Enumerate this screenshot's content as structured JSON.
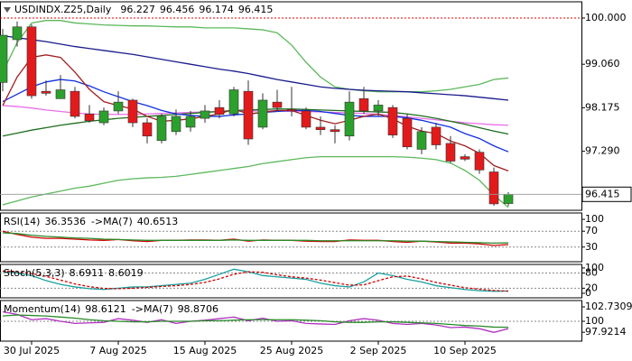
{
  "chart_data": [
    {
      "type": "candlestick",
      "title": "USDINDX.Z25,Daily",
      "categories": [
        null,
        null,
        "30 Jul 2025",
        null,
        null,
        null,
        null,
        null,
        "7 Aug 2025",
        null,
        null,
        null,
        null,
        null,
        "15 Aug 2025",
        null,
        null,
        null,
        null,
        null,
        "25 Aug 2025",
        null,
        null,
        null,
        null,
        null,
        "2 Sep 2025",
        null,
        null,
        null,
        null,
        null,
        "10 Sep 2025",
        null,
        null,
        null
      ],
      "ylim": [
        96.09,
        100.33
      ],
      "yticks": [
        {
          "value": 100,
          "label": "100.000"
        },
        {
          "value": 99.06,
          "label": "99.060"
        },
        98.175,
        {
          "value": 97.29,
          "label": "97.290"
        }
      ],
      "up_color": "#2ca02c",
      "down_color": "#e31a1c",
      "open": [
        98.69,
        99.56,
        99.82,
        98.51,
        98.36,
        98.51,
        98.05,
        97.87,
        98.11,
        98.33,
        97.87,
        97.51,
        97.69,
        97.78,
        97.96,
        98.18,
        98.05,
        98.51,
        97.78,
        98.29,
        98.14,
        98.11,
        97.78,
        97.73,
        97.6,
        98.36,
        98.11,
        98.18,
        97.96,
        97.33,
        97.78,
        97.45,
        97.18,
        97.27,
        96.87,
        96.227
      ],
      "high": [
        99.78,
        99.93,
        99.87,
        98.73,
        98.84,
        98.6,
        98.23,
        98.18,
        98.51,
        98.36,
        97.96,
        98.05,
        98.14,
        98.11,
        98.23,
        98.33,
        98.6,
        98.73,
        98.47,
        98.54,
        98.6,
        98.18,
        98.0,
        97.82,
        98.51,
        98.6,
        98.33,
        98.23,
        98.05,
        97.78,
        97.87,
        97.6,
        97.23,
        97.33,
        96.96,
        96.456
      ],
      "low": [
        98.51,
        99.42,
        98.36,
        98.42,
        98.36,
        97.96,
        97.87,
        97.82,
        98.05,
        97.78,
        97.45,
        97.45,
        97.62,
        97.69,
        97.87,
        97.96,
        98.0,
        97.42,
        97.74,
        98.11,
        98.0,
        97.74,
        97.62,
        97.45,
        97.51,
        98.05,
        98.0,
        97.56,
        97.33,
        97.23,
        97.33,
        97.05,
        97.09,
        96.83,
        96.18,
        96.174
      ],
      "close": [
        99.65,
        99.82,
        98.42,
        98.47,
        98.54,
        98.0,
        97.91,
        98.11,
        98.29,
        97.87,
        97.6,
        98.0,
        98.0,
        98.0,
        98.11,
        98.04,
        98.54,
        97.54,
        98.33,
        98.18,
        98.11,
        97.78,
        97.73,
        97.69,
        98.29,
        98.11,
        98.23,
        97.62,
        97.38,
        97.69,
        97.42,
        97.09,
        97.13,
        96.91,
        96.22,
        96.415
      ],
      "overlays": [
        {
          "color": "#5cb85c",
          "values": [
            98.9,
            99.5,
            99.9,
            99.95,
            99.95,
            99.9,
            99.88,
            99.86,
            99.85,
            99.84,
            99.84,
            99.83,
            99.82,
            99.82,
            99.8,
            99.8,
            99.8,
            99.78,
            99.76,
            99.7,
            99.45,
            99.1,
            98.8,
            98.6,
            98.55,
            98.52,
            98.5,
            98.5,
            98.5,
            98.5,
            98.52,
            98.55,
            98.6,
            98.65,
            98.75,
            98.78
          ]
        },
        {
          "color": "#5cb85c",
          "values": [
            96.2,
            96.28,
            96.36,
            96.42,
            96.48,
            96.54,
            96.58,
            96.64,
            96.7,
            96.73,
            96.75,
            96.76,
            96.78,
            96.82,
            96.86,
            96.9,
            96.94,
            96.98,
            97.04,
            97.08,
            97.12,
            97.16,
            97.18,
            97.18,
            97.18,
            97.18,
            97.18,
            97.18,
            97.17,
            97.15,
            97.12,
            97.05,
            96.9,
            96.7,
            96.4,
            96.15
          ]
        },
        {
          "color": "#1a1a8c",
          "values": [
            99.64,
            99.6,
            99.56,
            99.52,
            99.47,
            99.42,
            99.38,
            99.34,
            99.3,
            99.26,
            99.21,
            99.16,
            99.11,
            99.06,
            99.01,
            98.96,
            98.92,
            98.87,
            98.81,
            98.75,
            98.7,
            98.65,
            98.6,
            98.57,
            98.55,
            98.53,
            98.52,
            98.51,
            98.5,
            98.48,
            98.46,
            98.44,
            98.42,
            98.39,
            98.36,
            98.33
          ]
        },
        {
          "color": "#e86ee8",
          "values": [
            98.22,
            98.2,
            98.17,
            98.13,
            98.1,
            98.07,
            98.05,
            98.04,
            98.04,
            98.04,
            98.05,
            98.06,
            98.07,
            98.08,
            98.09,
            98.1,
            98.11,
            98.11,
            98.11,
            98.11,
            98.1,
            98.1,
            98.09,
            98.08,
            98.07,
            98.06,
            98.04,
            98.02,
            97.99,
            97.96,
            97.93,
            97.9,
            97.87,
            97.85,
            97.83,
            97.82
          ]
        },
        {
          "color": "#1e6e1e",
          "values": [
            97.6,
            97.66,
            97.72,
            97.77,
            97.82,
            97.86,
            97.9,
            97.93,
            97.96,
            97.98,
            98.0,
            98.02,
            98.04,
            98.06,
            98.08,
            98.1,
            98.12,
            98.13,
            98.14,
            98.15,
            98.15,
            98.14,
            98.13,
            98.12,
            98.11,
            98.1,
            98.09,
            98.08,
            98.05,
            98.01,
            97.96,
            97.9,
            97.84,
            97.77,
            97.7,
            97.64
          ]
        },
        {
          "color": "#1030e0",
          "values": [
            98.3,
            98.45,
            98.6,
            98.7,
            98.75,
            98.72,
            98.62,
            98.5,
            98.4,
            98.3,
            98.22,
            98.12,
            98.05,
            98.02,
            98.0,
            98.0,
            98.03,
            98.05,
            98.08,
            98.1,
            98.12,
            98.12,
            98.1,
            98.06,
            98.02,
            98.0,
            98.0,
            98.0,
            97.97,
            97.92,
            97.85,
            97.78,
            97.65,
            97.55,
            97.4,
            97.28
          ]
        },
        {
          "color": "#a02020",
          "values": [
            98.22,
            98.8,
            99.2,
            99.25,
            99.2,
            98.9,
            98.55,
            98.3,
            98.22,
            98.15,
            98.0,
            97.9,
            97.92,
            97.95,
            98.0,
            98.05,
            98.15,
            98.05,
            98.08,
            98.12,
            98.12,
            98.02,
            97.92,
            97.85,
            97.92,
            98.0,
            98.05,
            97.95,
            97.8,
            97.7,
            97.65,
            97.5,
            97.4,
            97.25,
            97.0,
            96.89
          ]
        }
      ],
      "levels": [
        {
          "value": 100,
          "color": "#e00000"
        }
      ]
    },
    {
      "type": "line",
      "ylim": [
        -7,
        116
      ],
      "yticks": [
        30,
        70,
        100
      ],
      "levels": [
        70,
        30
      ],
      "series": [
        {
          "name": "RSI(14)",
          "color": "#d00000",
          "values": [
            70,
            62,
            55,
            52,
            52,
            50,
            48,
            47,
            49,
            46,
            44,
            47,
            47,
            48,
            48,
            47,
            50,
            45,
            48,
            47,
            47,
            45,
            44,
            44,
            48,
            47,
            47,
            44,
            42,
            45,
            43,
            40,
            40,
            38,
            34,
            36.3536
          ]
        },
        {
          "name": "->MA(7)",
          "color": "#2a8a2a",
          "values": [
            66,
            64,
            60,
            57,
            55,
            53,
            52,
            50,
            49,
            48,
            47,
            47,
            47,
            47,
            47,
            47,
            48,
            47,
            47,
            47,
            47,
            47,
            46,
            46,
            46,
            46,
            46,
            46,
            45,
            45,
            44,
            43,
            42,
            41,
            40,
            40.6513
          ]
        }
      ]
    },
    {
      "type": "line",
      "ylim": [
        -18,
        114
      ],
      "yticks": [
        0,
        20,
        80,
        100
      ],
      "levels": [
        80,
        20
      ],
      "series": [
        {
          "name": "Stoch(5,3,3)",
          "color": "#1aa0a0",
          "values": [
            85,
            80,
            70,
            50,
            35,
            25,
            18,
            15,
            20,
            25,
            25,
            30,
            35,
            40,
            55,
            75,
            95,
            85,
            70,
            65,
            60,
            55,
            40,
            30,
            25,
            45,
            80,
            70,
            55,
            45,
            30,
            22,
            15,
            10,
            8,
            8.6911
          ]
        },
        {
          "color": "#d00000",
          "dashed": true,
          "values": [
            88,
            85,
            78,
            67,
            52,
            37,
            26,
            19,
            18,
            20,
            23,
            27,
            30,
            35,
            43,
            57,
            75,
            85,
            83,
            73,
            65,
            60,
            52,
            42,
            32,
            33,
            50,
            65,
            68,
            57,
            43,
            32,
            22,
            16,
            11,
            8.6019
          ]
        }
      ]
    },
    {
      "type": "line",
      "ylim": [
        96.24,
        103.93
      ],
      "yticks": [
        102.7309,
        100,
        97.9214
      ],
      "levels": [
        100
      ],
      "series": [
        {
          "name": "Momentum(14)",
          "color": "#b030c0",
          "values": [
            101.8,
            101.3,
            100.3,
            100.5,
            100.0,
            99.6,
            99.7,
            99.8,
            100.5,
            100.2,
            99.8,
            100.3,
            99.6,
            100.0,
            100.2,
            100.5,
            100.8,
            100.1,
            100.6,
            100.0,
            100.1,
            99.6,
            99.5,
            99.4,
            100.1,
            100.5,
            100.2,
            99.6,
            99.4,
            99.6,
            99.3,
            98.8,
            98.9,
            98.6,
            97.9,
            98.6121
          ]
        },
        {
          "name": "->MA(7)",
          "color": "#2a8a2a",
          "values": [
            101.0,
            101.2,
            101.1,
            101.0,
            100.8,
            100.6,
            100.3,
            100.1,
            100.0,
            99.9,
            99.9,
            100.0,
            100.0,
            100.0,
            100.1,
            100.1,
            100.2,
            100.3,
            100.3,
            100.3,
            100.3,
            100.2,
            100.1,
            99.9,
            99.8,
            99.8,
            99.9,
            99.9,
            99.8,
            99.7,
            99.6,
            99.4,
            99.2,
            99.1,
            98.9,
            98.8706
          ]
        }
      ]
    }
  ]
}
